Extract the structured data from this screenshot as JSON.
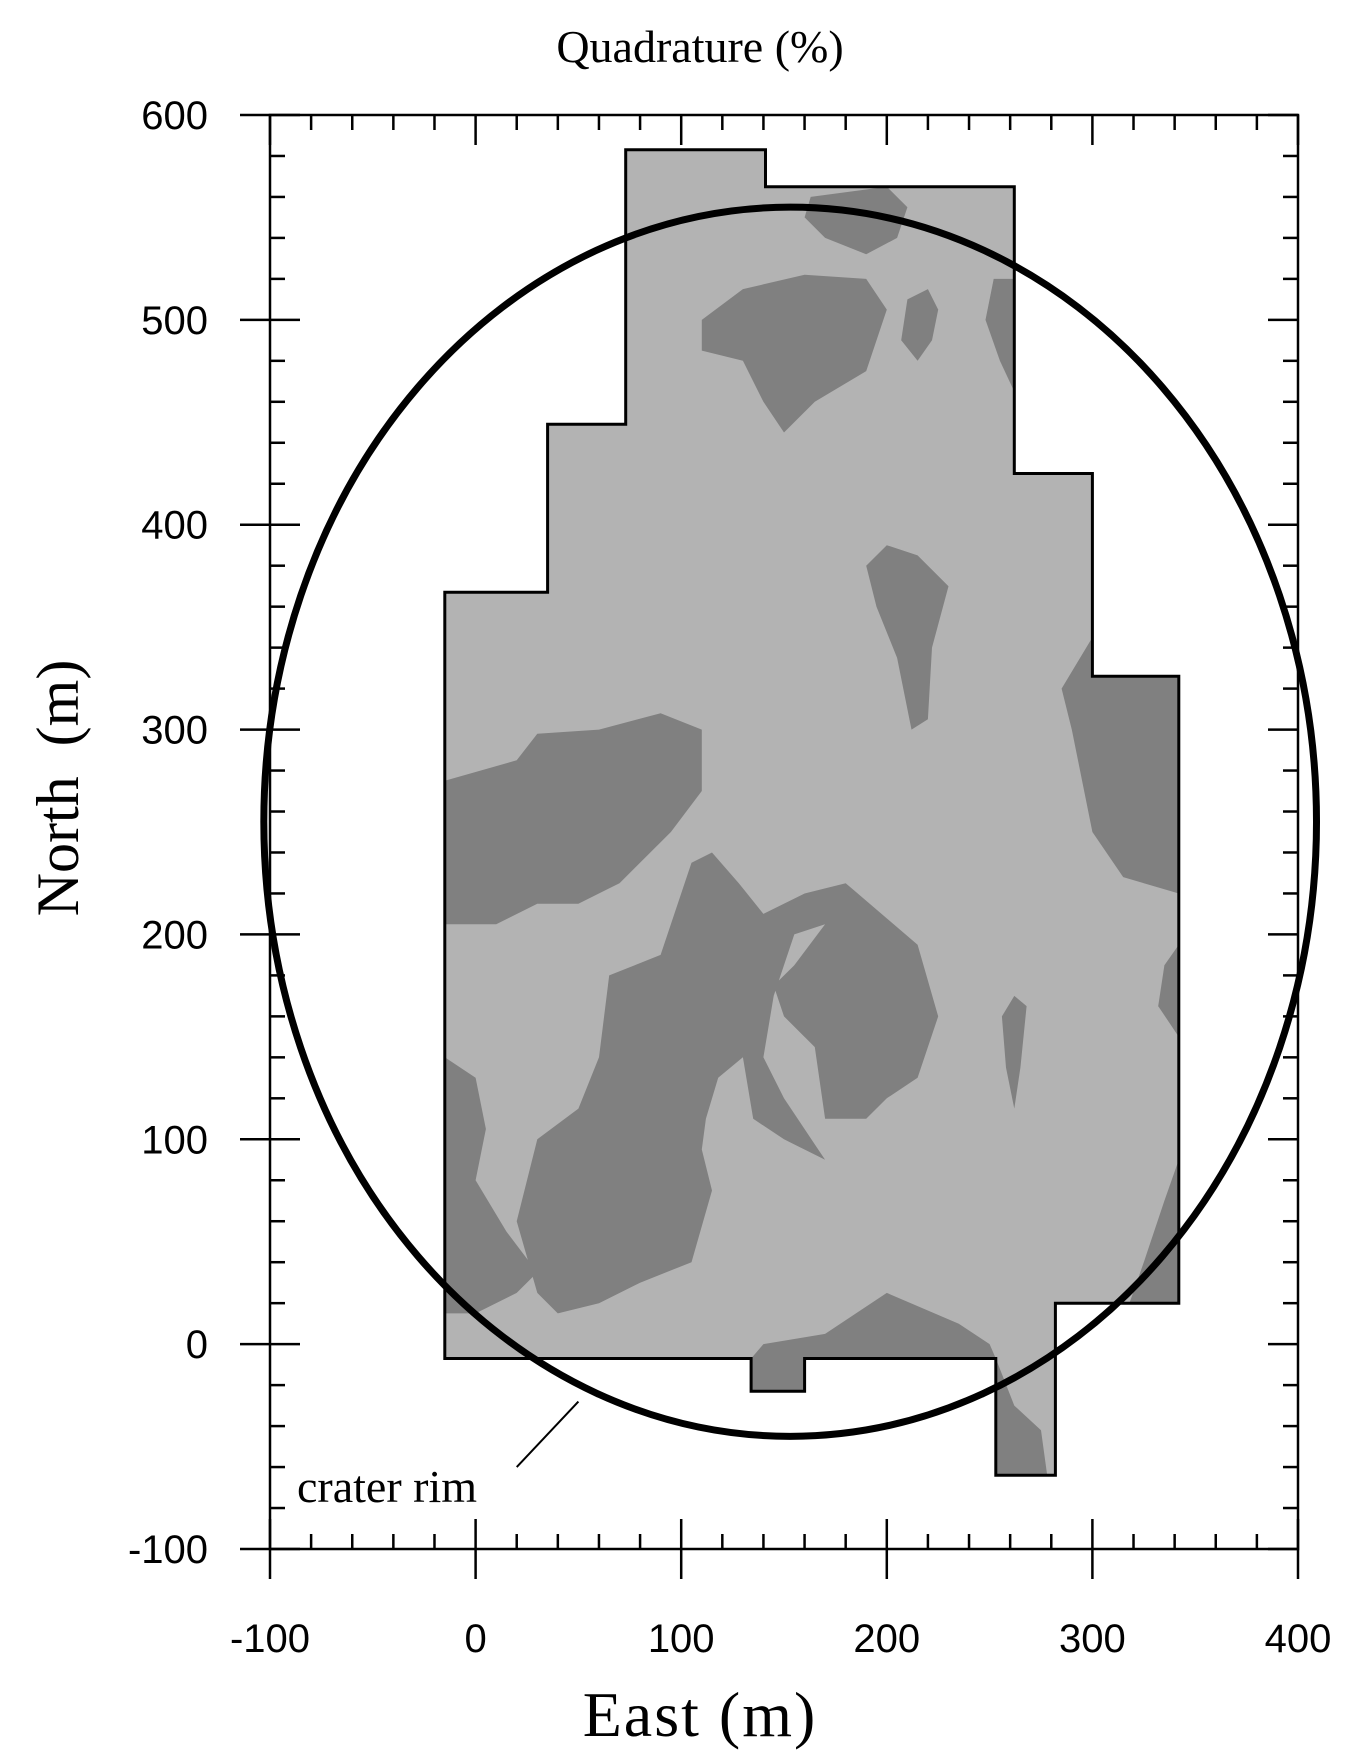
{
  "chart_data": {
    "type": "heatmap",
    "title": "Quadrature (%)",
    "xlabel": "East (m)",
    "ylabel": "North  (m)",
    "xlim": [
      -100,
      400
    ],
    "ylim": [
      -100,
      600
    ],
    "xticks": [
      -100,
      0,
      100,
      200,
      300,
      400
    ],
    "yticks": [
      -100,
      0,
      100,
      200,
      300,
      400,
      500,
      600
    ],
    "x_minor_step": 20,
    "y_minor_step": 20,
    "grid": false,
    "legend": null,
    "colors": {
      "background": "#b3b3b3",
      "contour_fill": "#808080",
      "outline": "#000000"
    },
    "survey_boundary": [
      [
        -15,
        -7
      ],
      [
        -15,
        367
      ],
      [
        35,
        367
      ],
      [
        35,
        449
      ],
      [
        73,
        449
      ],
      [
        73,
        583
      ],
      [
        141,
        583
      ],
      [
        141,
        565
      ],
      [
        262,
        565
      ],
      [
        262,
        425
      ],
      [
        300,
        425
      ],
      [
        300,
        326
      ],
      [
        342,
        326
      ],
      [
        342,
        20
      ],
      [
        282,
        20
      ],
      [
        282,
        -64
      ],
      [
        253,
        -64
      ],
      [
        253,
        -7
      ],
      [
        160,
        -7
      ],
      [
        160,
        -23
      ],
      [
        134,
        -23
      ],
      [
        134,
        -7
      ]
    ],
    "contour_regions": [
      {
        "level": "high",
        "points": [
          [
            -15,
            275
          ],
          [
            20,
            285
          ],
          [
            30,
            298
          ],
          [
            60,
            300
          ],
          [
            90,
            308
          ],
          [
            110,
            300
          ],
          [
            110,
            270
          ],
          [
            95,
            250
          ],
          [
            70,
            225
          ],
          [
            50,
            215
          ],
          [
            30,
            215
          ],
          [
            10,
            205
          ],
          [
            -15,
            205
          ]
        ]
      },
      {
        "level": "high",
        "points": [
          [
            -15,
            140
          ],
          [
            0,
            130
          ],
          [
            5,
            105
          ],
          [
            0,
            80
          ],
          [
            15,
            55
          ],
          [
            30,
            35
          ],
          [
            20,
            25
          ],
          [
            0,
            15
          ],
          [
            -15,
            15
          ]
        ]
      },
      {
        "level": "high",
        "points": [
          [
            20,
            60
          ],
          [
            30,
            100
          ],
          [
            50,
            115
          ],
          [
            60,
            140
          ],
          [
            65,
            180
          ],
          [
            90,
            190
          ],
          [
            105,
            235
          ],
          [
            115,
            240
          ],
          [
            128,
            225
          ],
          [
            140,
            210
          ],
          [
            160,
            220
          ],
          [
            180,
            225
          ],
          [
            215,
            195
          ],
          [
            225,
            160
          ],
          [
            215,
            130
          ],
          [
            200,
            120
          ],
          [
            190,
            110
          ],
          [
            170,
            110
          ],
          [
            165,
            145
          ],
          [
            150,
            160
          ],
          [
            145,
            175
          ],
          [
            155,
            185
          ],
          [
            170,
            205
          ],
          [
            155,
            200
          ],
          [
            145,
            170
          ],
          [
            140,
            140
          ],
          [
            150,
            120
          ],
          [
            170,
            90
          ],
          [
            150,
            100
          ],
          [
            135,
            110
          ],
          [
            130,
            140
          ],
          [
            118,
            130
          ],
          [
            112,
            110
          ],
          [
            110,
            95
          ],
          [
            115,
            75
          ],
          [
            105,
            40
          ],
          [
            80,
            30
          ],
          [
            60,
            20
          ],
          [
            40,
            15
          ],
          [
            30,
            25
          ]
        ]
      },
      {
        "level": "high",
        "points": [
          [
            90,
            115
          ],
          [
            95,
            140
          ],
          [
            105,
            150
          ],
          [
            112,
            140
          ],
          [
            110,
            115
          ],
          [
            100,
            100
          ]
        ]
      },
      {
        "level": "high",
        "points": [
          [
            50,
            40
          ],
          [
            55,
            60
          ],
          [
            65,
            55
          ],
          [
            62,
            38
          ],
          [
            55,
            25
          ]
        ]
      },
      {
        "level": "high",
        "points": [
          [
            200,
            390
          ],
          [
            215,
            385
          ],
          [
            230,
            370
          ],
          [
            222,
            340
          ],
          [
            220,
            305
          ],
          [
            212,
            300
          ],
          [
            205,
            335
          ],
          [
            195,
            360
          ],
          [
            190,
            380
          ]
        ]
      },
      {
        "level": "high",
        "points": [
          [
            310,
            395
          ],
          [
            323,
            400
          ],
          [
            342,
            380
          ],
          [
            342,
            220
          ],
          [
            315,
            228
          ],
          [
            300,
            250
          ],
          [
            290,
            300
          ],
          [
            285,
            320
          ],
          [
            300,
            345
          ],
          [
            310,
            365
          ]
        ]
      },
      {
        "level": "high",
        "points": [
          [
            342,
            195
          ],
          [
            335,
            185
          ],
          [
            332,
            165
          ],
          [
            342,
            150
          ]
        ]
      },
      {
        "level": "high",
        "points": [
          [
            262,
            170
          ],
          [
            268,
            165
          ],
          [
            265,
            135
          ],
          [
            262,
            115
          ],
          [
            258,
            135
          ],
          [
            256,
            160
          ]
        ]
      },
      {
        "level": "high",
        "points": [
          [
            110,
            500
          ],
          [
            130,
            515
          ],
          [
            160,
            522
          ],
          [
            190,
            520
          ],
          [
            200,
            505
          ],
          [
            190,
            475
          ],
          [
            165,
            460
          ],
          [
            150,
            445
          ],
          [
            140,
            460
          ],
          [
            130,
            480
          ],
          [
            110,
            485
          ]
        ]
      },
      {
        "level": "high",
        "points": [
          [
            210,
            510
          ],
          [
            220,
            515
          ],
          [
            225,
            505
          ],
          [
            222,
            490
          ],
          [
            215,
            480
          ],
          [
            207,
            490
          ]
        ]
      },
      {
        "level": "high",
        "points": [
          [
            163,
            560
          ],
          [
            200,
            565
          ],
          [
            210,
            555
          ],
          [
            205,
            540
          ],
          [
            190,
            532
          ],
          [
            170,
            540
          ],
          [
            160,
            550
          ]
        ]
      },
      {
        "level": "high",
        "points": [
          [
            262,
            520
          ],
          [
            252,
            520
          ],
          [
            248,
            500
          ],
          [
            255,
            480
          ],
          [
            262,
            465
          ]
        ]
      },
      {
        "level": "high",
        "points": [
          [
            140,
            0
          ],
          [
            170,
            5
          ],
          [
            200,
            25
          ],
          [
            235,
            10
          ],
          [
            250,
            0
          ],
          [
            253,
            -7
          ],
          [
            160,
            -7
          ],
          [
            160,
            -23
          ],
          [
            134,
            -23
          ],
          [
            134,
            -7
          ]
        ]
      },
      {
        "level": "high",
        "points": [
          [
            253,
            -7
          ],
          [
            262,
            -30
          ],
          [
            275,
            -42
          ],
          [
            278,
            -64
          ],
          [
            253,
            -64
          ]
        ]
      },
      {
        "level": "high",
        "points": [
          [
            342,
            90
          ],
          [
            335,
            70
          ],
          [
            325,
            40
          ],
          [
            318,
            20
          ],
          [
            342,
            20
          ]
        ]
      }
    ],
    "overlays": [
      {
        "type": "ellipse",
        "label": "crater rim",
        "center": [
          153,
          255
        ],
        "radius_x": 256,
        "radius_y": 300,
        "leader_from": [
          50,
          -28
        ],
        "leader_to": [
          20,
          -60
        ]
      }
    ]
  }
}
